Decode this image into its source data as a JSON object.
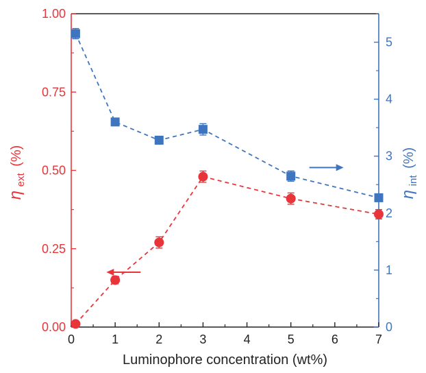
{
  "chart_data": {
    "type": "line",
    "xlabel": "Luminophore concentration (wt%)",
    "ylabel_left": {
      "symbol": "η",
      "subscript": "ext",
      "unit": "(%)"
    },
    "ylabel_right": {
      "symbol": "η",
      "subscript": "int",
      "unit": "(%)"
    },
    "xlim": [
      0,
      7
    ],
    "ylim_left": [
      0,
      1.0
    ],
    "ylim_right": [
      0,
      5.5
    ],
    "x_ticks": [
      0,
      1,
      2,
      3,
      4,
      5,
      6,
      7
    ],
    "x_tick_labels": [
      "0",
      "1",
      "2",
      "3",
      "4",
      "5",
      "6",
      "7"
    ],
    "y_left_ticks": [
      0,
      0.25,
      0.5,
      0.75,
      1.0
    ],
    "y_left_tick_labels": [
      "0.00",
      "0.25",
      "0.50",
      "0.75",
      "1.00"
    ],
    "y_right_ticks": [
      0,
      1,
      2,
      3,
      4,
      5
    ],
    "y_right_tick_labels": [
      "0",
      "1",
      "2",
      "3",
      "4",
      "5"
    ],
    "series": [
      {
        "axis": "left",
        "color": "#e8353a",
        "marker": "circle",
        "line": "dashed",
        "x": [
          0.1,
          1,
          2,
          3,
          5,
          7
        ],
        "y": [
          0.01,
          0.15,
          0.27,
          0.48,
          0.41,
          0.36
        ],
        "error": [
          0.005,
          0.012,
          0.018,
          0.018,
          0.018,
          0.015
        ],
        "arrow_direction": "left",
        "arrow_at": {
          "x": 0.8,
          "y": 0.175
        }
      },
      {
        "axis": "right",
        "color": "#3f74bf",
        "marker": "square",
        "line": "dashed",
        "x": [
          0.1,
          1,
          2,
          3,
          5,
          7
        ],
        "y": [
          5.15,
          3.6,
          3.28,
          3.47,
          2.65,
          2.27
        ],
        "error": [
          0.09,
          0.05,
          0.07,
          0.1,
          0.09,
          0.05
        ],
        "arrow_direction": "right",
        "arrow_at": {
          "x": 6.2,
          "y": 2.8
        }
      }
    ]
  }
}
